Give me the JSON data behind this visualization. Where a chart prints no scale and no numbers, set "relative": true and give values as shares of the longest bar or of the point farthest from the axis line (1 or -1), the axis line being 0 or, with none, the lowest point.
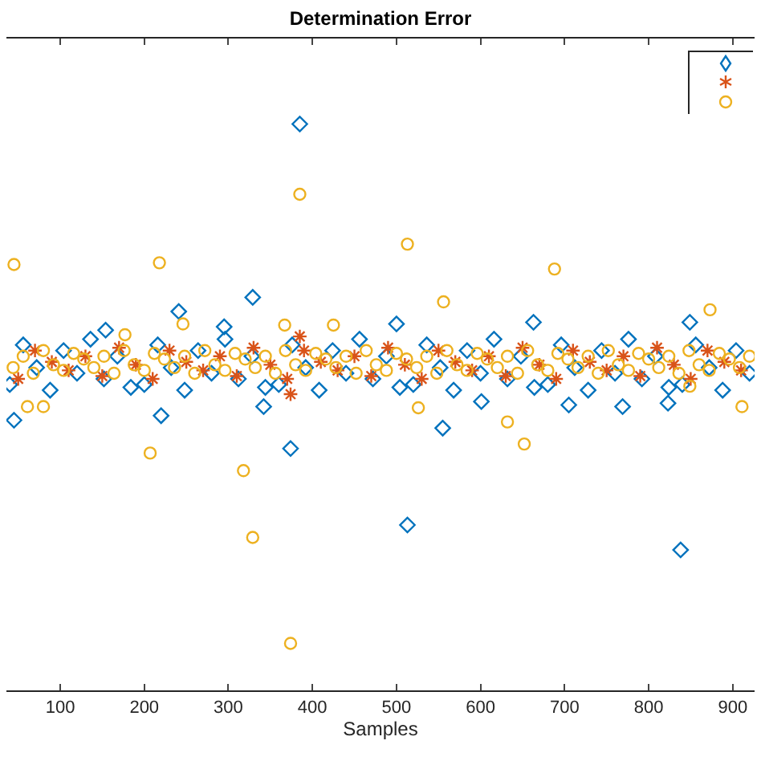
{
  "chart_data": {
    "type": "scatter",
    "title": "Determination Error",
    "xlabel": "Samples",
    "relative": true,
    "xlim": [
      36,
      926
    ],
    "xticks": [
      100,
      200,
      300,
      400,
      500,
      600,
      700,
      800,
      900
    ],
    "grid": false,
    "series": [
      {
        "color": "#0072bd",
        "marker": "diamond",
        "x": [
          385,
          329,
          241,
          154,
          295,
          500,
          663,
          849,
          45,
          220,
          342,
          374,
          555,
          705,
          823,
          513,
          838,
          769,
          601,
          40,
          56,
          72,
          88,
          104,
          120,
          136,
          152,
          168,
          184,
          200,
          216,
          232,
          248,
          264,
          280,
          296,
          312,
          328,
          344,
          360,
          376,
          392,
          408,
          424,
          440,
          456,
          472,
          488,
          504,
          520,
          536,
          552,
          568,
          584,
          600,
          616,
          632,
          648,
          664,
          680,
          696,
          712,
          728,
          744,
          760,
          776,
          792,
          808,
          824,
          840,
          856,
          872,
          888,
          904,
          920
        ],
        "values": [
          1.0,
          0.694,
          0.669,
          0.636,
          0.642,
          0.647,
          0.65,
          0.65,
          0.477,
          0.485,
          0.501,
          0.427,
          0.463,
          0.504,
          0.507,
          0.292,
          0.248,
          0.501,
          0.51,
          0.54,
          0.61,
          0.57,
          0.53,
          0.6,
          0.56,
          0.62,
          0.55,
          0.59,
          0.535,
          0.54,
          0.61,
          0.57,
          0.53,
          0.6,
          0.56,
          0.62,
          0.55,
          0.59,
          0.535,
          0.54,
          0.61,
          0.57,
          0.53,
          0.6,
          0.56,
          0.62,
          0.55,
          0.59,
          0.535,
          0.54,
          0.61,
          0.57,
          0.53,
          0.6,
          0.56,
          0.62,
          0.55,
          0.59,
          0.535,
          0.54,
          0.61,
          0.57,
          0.53,
          0.6,
          0.56,
          0.62,
          0.55,
          0.59,
          0.535,
          0.54,
          0.61,
          0.57,
          0.53,
          0.6,
          0.56
        ]
      },
      {
        "color": "#d95319",
        "marker": "cross",
        "x": [
          385,
          374,
          50,
          70,
          90,
          110,
          130,
          150,
          170,
          190,
          210,
          230,
          250,
          270,
          290,
          310,
          330,
          350,
          370,
          390,
          410,
          430,
          450,
          470,
          490,
          510,
          530,
          550,
          570,
          590,
          610,
          630,
          650,
          670,
          690,
          710,
          730,
          750,
          770,
          790,
          810,
          830,
          850,
          870,
          890,
          910
        ],
        "values": [
          0.625,
          0.523,
          0.55,
          0.6,
          0.58,
          0.565,
          0.59,
          0.555,
          0.605,
          0.575,
          0.55,
          0.6,
          0.58,
          0.565,
          0.59,
          0.555,
          0.605,
          0.575,
          0.55,
          0.6,
          0.58,
          0.565,
          0.59,
          0.555,
          0.605,
          0.575,
          0.55,
          0.6,
          0.58,
          0.565,
          0.59,
          0.555,
          0.605,
          0.575,
          0.55,
          0.6,
          0.58,
          0.565,
          0.59,
          0.555,
          0.605,
          0.575,
          0.55,
          0.6,
          0.58,
          0.565
        ]
      },
      {
        "color": "#edb120",
        "marker": "circle",
        "x": [
          385,
          513,
          45,
          218,
          688,
          556,
          873,
          246,
          367,
          425,
          177,
          207,
          318,
          652,
          632,
          526,
          61,
          80,
          911,
          849,
          329,
          374,
          44,
          56,
          68,
          80,
          92,
          104,
          116,
          128,
          140,
          152,
          164,
          176,
          188,
          200,
          212,
          224,
          236,
          248,
          260,
          272,
          284,
          296,
          308,
          320,
          332,
          344,
          356,
          368,
          380,
          392,
          404,
          416,
          428,
          440,
          452,
          464,
          476,
          488,
          500,
          512,
          524,
          536,
          548,
          560,
          572,
          584,
          596,
          608,
          620,
          632,
          644,
          656,
          668,
          680,
          692,
          704,
          716,
          728,
          740,
          752,
          764,
          776,
          788,
          800,
          812,
          824,
          836,
          848,
          860,
          872,
          884,
          896,
          908,
          920
        ],
        "values": [
          0.876,
          0.788,
          0.752,
          0.755,
          0.744,
          0.686,
          0.672,
          0.647,
          0.645,
          0.645,
          0.628,
          0.419,
          0.388,
          0.435,
          0.474,
          0.499,
          0.501,
          0.501,
          0.501,
          0.537,
          0.27,
          0.083,
          0.57,
          0.59,
          0.56,
          0.6,
          0.575,
          0.565,
          0.595,
          0.585,
          0.57,
          0.59,
          0.56,
          0.6,
          0.575,
          0.565,
          0.595,
          0.585,
          0.57,
          0.59,
          0.56,
          0.6,
          0.575,
          0.565,
          0.595,
          0.585,
          0.57,
          0.59,
          0.56,
          0.6,
          0.575,
          0.565,
          0.595,
          0.585,
          0.57,
          0.59,
          0.56,
          0.6,
          0.575,
          0.565,
          0.595,
          0.585,
          0.57,
          0.59,
          0.56,
          0.6,
          0.575,
          0.565,
          0.595,
          0.585,
          0.57,
          0.59,
          0.56,
          0.6,
          0.575,
          0.565,
          0.595,
          0.585,
          0.57,
          0.59,
          0.56,
          0.6,
          0.575,
          0.565,
          0.595,
          0.585,
          0.57,
          0.59,
          0.56,
          0.6,
          0.575,
          0.565,
          0.595,
          0.585,
          0.57,
          0.59
        ]
      }
    ]
  }
}
